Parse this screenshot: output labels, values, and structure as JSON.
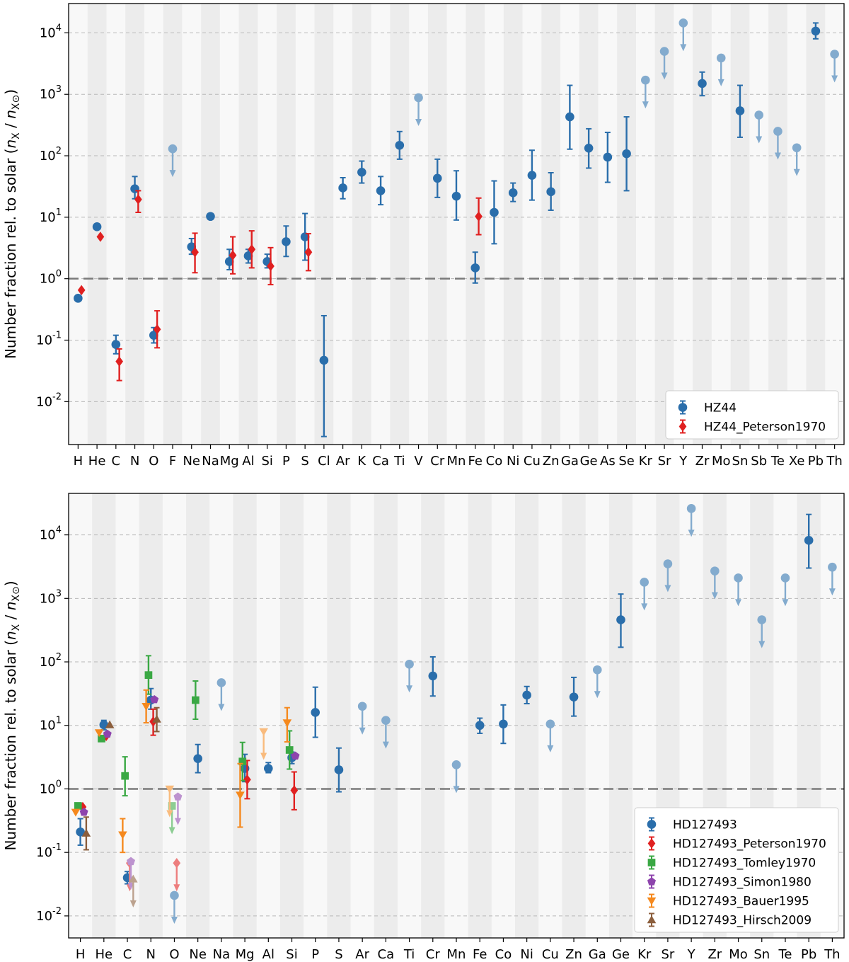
{
  "chart_data": [
    {
      "type": "scatter",
      "title": "",
      "ylabel": "Number fraction rel. to solar (nX / nX⊙)",
      "ylabel_main": "Number fraction rel. to solar (",
      "ylabel_n": "n",
      "ylabel_x": "X",
      "ylabel_slash": " / ",
      "ylabel_n2": "n",
      "ylabel_x2": "X⊙",
      "ylabel_close": ")",
      "yscale": "log",
      "ylim": [
        0.002,
        30000
      ],
      "ytick_exps": [
        -2,
        -1,
        0,
        1,
        2,
        3,
        4
      ],
      "ytick_labels": [
        "10-2",
        "10-1",
        "100",
        "101",
        "102",
        "103",
        "104"
      ],
      "grid": "horizontal dashed",
      "reference_line": 1,
      "legend_position": "lower-right",
      "categories": [
        "H",
        "He",
        "C",
        "N",
        "O",
        "F",
        "Ne",
        "Na",
        "Mg",
        "Al",
        "Si",
        "P",
        "S",
        "Cl",
        "Ar",
        "K",
        "Ca",
        "Ti",
        "V",
        "Cr",
        "Mn",
        "Fe",
        "Co",
        "Ni",
        "Cu",
        "Zn",
        "Ga",
        "Ge",
        "As",
        "Se",
        "Kr",
        "Sr",
        "Y",
        "Zr",
        "Mo",
        "Sn",
        "Sb",
        "Te",
        "Xe",
        "Pb",
        "Th"
      ],
      "series": [
        {
          "name": "HZ44",
          "marker": "circle",
          "color": "#2a6eab",
          "points": [
            {
              "el": "H",
              "v": 0.48
            },
            {
              "el": "He",
              "v": 7.0
            },
            {
              "el": "C",
              "v": 0.085,
              "lo": 0.06,
              "hi": 0.12
            },
            {
              "el": "N",
              "v": 29,
              "lo": 20,
              "hi": 46
            },
            {
              "el": "O",
              "v": 0.12,
              "lo": 0.09,
              "hi": 0.16
            },
            {
              "el": "Ne",
              "v": 3.3,
              "lo": 2.5,
              "hi": 4.5
            },
            {
              "el": "Na",
              "v": 10.3,
              "lo": 9.3,
              "hi": 11.5
            },
            {
              "el": "Mg",
              "v": 1.9,
              "lo": 1.4,
              "hi": 3.0
            },
            {
              "el": "Al",
              "v": 2.35,
              "lo": 1.8,
              "hi": 3.0
            },
            {
              "el": "Si",
              "v": 1.9,
              "lo": 1.5,
              "hi": 2.5
            },
            {
              "el": "P",
              "v": 4.0,
              "lo": 2.3,
              "hi": 7.2
            },
            {
              "el": "S",
              "v": 4.8,
              "lo": 2.0,
              "hi": 11.5
            },
            {
              "el": "Cl",
              "v": 0.047,
              "lo": 0.0027,
              "hi": 0.25
            },
            {
              "el": "Ar",
              "v": 30,
              "lo": 20,
              "hi": 44
            },
            {
              "el": "K",
              "v": 54,
              "lo": 36,
              "hi": 82
            },
            {
              "el": "Ca",
              "v": 27,
              "lo": 16,
              "hi": 46
            },
            {
              "el": "Ti",
              "v": 148,
              "lo": 88,
              "hi": 248
            },
            {
              "el": "V",
              "v": 880,
              "upper": true
            },
            {
              "el": "F",
              "v": 130,
              "upper": true
            },
            {
              "el": "Cr",
              "v": 43,
              "lo": 21,
              "hi": 88
            },
            {
              "el": "Mn",
              "v": 22,
              "lo": 9,
              "hi": 57
            },
            {
              "el": "Fe",
              "v": 1.5,
              "lo": 0.85,
              "hi": 2.7
            },
            {
              "el": "Co",
              "v": 12,
              "lo": 3.7,
              "hi": 39
            },
            {
              "el": "Ni",
              "v": 25,
              "lo": 18,
              "hi": 36
            },
            {
              "el": "Cu",
              "v": 48,
              "lo": 19,
              "hi": 123
            },
            {
              "el": "Zn",
              "v": 26,
              "lo": 13,
              "hi": 53
            },
            {
              "el": "Ga",
              "v": 430,
              "lo": 128,
              "hi": 1400
            },
            {
              "el": "Ge",
              "v": 133,
              "lo": 63,
              "hi": 275
            },
            {
              "el": "As",
              "v": 95,
              "lo": 37,
              "hi": 240
            },
            {
              "el": "Se",
              "v": 108,
              "lo": 27,
              "hi": 430
            },
            {
              "el": "Kr",
              "v": 1700,
              "upper": true
            },
            {
              "el": "Sr",
              "v": 5000,
              "upper": true
            },
            {
              "el": "Y",
              "v": 14500,
              "upper": true
            },
            {
              "el": "Zr",
              "v": 1500,
              "lo": 950,
              "hi": 2300
            },
            {
              "el": "Mo",
              "v": 3900,
              "upper": true
            },
            {
              "el": "Sn",
              "v": 540,
              "lo": 200,
              "hi": 1400
            },
            {
              "el": "Sb",
              "v": 460,
              "upper": true
            },
            {
              "el": "Te",
              "v": 250,
              "upper": true
            },
            {
              "el": "Xe",
              "v": 135,
              "upper": true
            },
            {
              "el": "Pb",
              "v": 10700,
              "lo": 8000,
              "hi": 14500
            },
            {
              "el": "Th",
              "v": 4500,
              "upper": true
            }
          ]
        },
        {
          "name": "HZ44_Peterson1970",
          "marker": "diamond",
          "color": "#e02020",
          "points": [
            {
              "el": "H",
              "v": 0.65
            },
            {
              "el": "He",
              "v": 4.8
            },
            {
              "el": "C",
              "v": 0.045,
              "lo": 0.022,
              "hi": 0.072
            },
            {
              "el": "N",
              "v": 19.5,
              "lo": 12,
              "hi": 27
            },
            {
              "el": "O",
              "v": 0.15,
              "lo": 0.075,
              "hi": 0.3
            },
            {
              "el": "Ne",
              "v": 2.7,
              "lo": 1.25,
              "hi": 5.5
            },
            {
              "el": "Mg",
              "v": 2.4,
              "lo": 1.2,
              "hi": 4.8
            },
            {
              "el": "Al",
              "v": 3.0,
              "lo": 1.5,
              "hi": 6.0
            },
            {
              "el": "Si",
              "v": 1.6,
              "lo": 0.8,
              "hi": 3.2
            },
            {
              "el": "S",
              "v": 2.7,
              "lo": 1.35,
              "hi": 5.4
            },
            {
              "el": "Fe",
              "v": 10.3,
              "lo": 5.2,
              "hi": 20.5
            }
          ]
        }
      ]
    },
    {
      "type": "scatter",
      "title": "",
      "ylabel": "Number fraction rel. to solar (nX / nX⊙)",
      "ylabel_main": "Number fraction rel. to solar (",
      "ylabel_n": "n",
      "ylabel_x": "X",
      "ylabel_slash": " / ",
      "ylabel_n2": "n",
      "ylabel_x2": "X⊙",
      "ylabel_close": ")",
      "yscale": "log",
      "ylim": [
        0.0045,
        45000
      ],
      "ytick_exps": [
        -2,
        -1,
        0,
        1,
        2,
        3,
        4
      ],
      "ytick_labels": [
        "10-2",
        "10-1",
        "100",
        "101",
        "102",
        "103",
        "104"
      ],
      "grid": "horizontal dashed",
      "reference_line": 1,
      "legend_position": "lower-right",
      "categories": [
        "H",
        "He",
        "C",
        "N",
        "O",
        "Ne",
        "Na",
        "Mg",
        "Al",
        "Si",
        "P",
        "S",
        "Ar",
        "Ca",
        "Ti",
        "Cr",
        "Mn",
        "Fe",
        "Co",
        "Ni",
        "Cu",
        "Zn",
        "Ga",
        "Ge",
        "Kr",
        "Sr",
        "Y",
        "Zr",
        "Mo",
        "Sn",
        "Te",
        "Pb",
        "Th"
      ],
      "series": [
        {
          "name": "HD127493",
          "marker": "circle",
          "color": "#2a6eab",
          "offset": 0,
          "points": [
            {
              "el": "H",
              "v": 0.21,
              "lo": 0.13,
              "hi": 0.34
            },
            {
              "el": "He",
              "v": 10.2,
              "lo": 8.5,
              "hi": 12
            },
            {
              "el": "C",
              "v": 0.04,
              "lo": 0.032,
              "hi": 0.05
            },
            {
              "el": "N",
              "v": 25,
              "lo": 18,
              "hi": 38
            },
            {
              "el": "O",
              "v": 0.021,
              "upper": true
            },
            {
              "el": "Ne",
              "v": 3.0,
              "lo": 1.8,
              "hi": 5.0
            },
            {
              "el": "Na",
              "v": 47,
              "upper": true
            },
            {
              "el": "Mg",
              "v": 2.1,
              "lo": 1.3,
              "hi": 3.5
            },
            {
              "el": "Al",
              "v": 2.1,
              "lo": 1.8,
              "hi": 2.6
            },
            {
              "el": "Si",
              "v": 3.1,
              "lo": 2.5,
              "hi": 3.8
            },
            {
              "el": "P",
              "v": 16,
              "lo": 6.5,
              "hi": 40
            },
            {
              "el": "S",
              "v": 2.0,
              "lo": 0.9,
              "hi": 4.4
            },
            {
              "el": "Ar",
              "v": 20,
              "upper": true
            },
            {
              "el": "Ca",
              "v": 12,
              "upper": true
            },
            {
              "el": "Ti",
              "v": 92,
              "upper": true
            },
            {
              "el": "Cr",
              "v": 60,
              "lo": 29,
              "hi": 120
            },
            {
              "el": "Mn",
              "v": 2.4,
              "upper": true
            },
            {
              "el": "Fe",
              "v": 10,
              "lo": 7.5,
              "hi": 13
            },
            {
              "el": "Co",
              "v": 10.5,
              "lo": 5.2,
              "hi": 21
            },
            {
              "el": "Ni",
              "v": 30,
              "lo": 22,
              "hi": 41
            },
            {
              "el": "Cu",
              "v": 10.5,
              "upper": true
            },
            {
              "el": "Zn",
              "v": 28,
              "lo": 14,
              "hi": 57
            },
            {
              "el": "Ga",
              "v": 75,
              "upper": true
            },
            {
              "el": "Ge",
              "v": 460,
              "lo": 170,
              "hi": 1170
            },
            {
              "el": "Kr",
              "v": 1800,
              "upper": true
            },
            {
              "el": "Sr",
              "v": 3500,
              "upper": true
            },
            {
              "el": "Y",
              "v": 26000,
              "upper": true
            },
            {
              "el": "Zr",
              "v": 2700,
              "upper": true
            },
            {
              "el": "Mo",
              "v": 2100,
              "upper": true
            },
            {
              "el": "Sn",
              "v": 460,
              "upper": true
            },
            {
              "el": "Te",
              "v": 2100,
              "upper": true
            },
            {
              "el": "Pb",
              "v": 8200,
              "lo": 3000,
              "hi": 21000
            },
            {
              "el": "Th",
              "v": 3100,
              "upper": true
            }
          ]
        },
        {
          "name": "HD127493_Peterson1970",
          "marker": "diamond",
          "color": "#e02020",
          "offset": 0.1,
          "points": [
            {
              "el": "H",
              "v": 0.52
            },
            {
              "el": "He",
              "v": 6.8
            },
            {
              "el": "C",
              "v": 0.068,
              "upper": true
            },
            {
              "el": "N",
              "v": 11.5,
              "lo": 7.0,
              "hi": 18
            },
            {
              "el": "O",
              "v": 0.068,
              "upper": true
            },
            {
              "el": "Mg",
              "v": 1.4,
              "lo": 0.7,
              "hi": 2.8
            },
            {
              "el": "Si",
              "v": 0.95,
              "lo": 0.47,
              "hi": 1.85
            }
          ]
        },
        {
          "name": "HD127493_Tomley1970",
          "marker": "square",
          "color": "#3aa844",
          "offset": -0.1,
          "points": [
            {
              "el": "H",
              "v": 0.54
            },
            {
              "el": "He",
              "v": 6.2
            },
            {
              "el": "C",
              "v": 1.6,
              "lo": 0.78,
              "hi": 3.2
            },
            {
              "el": "N",
              "v": 62,
              "lo": 31,
              "hi": 125
            },
            {
              "el": "O",
              "v": 0.54,
              "upper": true
            },
            {
              "el": "Ne",
              "v": 25,
              "lo": 12.5,
              "hi": 50
            },
            {
              "el": "Mg",
              "v": 2.7,
              "lo": 1.35,
              "hi": 5.4
            },
            {
              "el": "Si",
              "v": 4.1,
              "lo": 2.05,
              "hi": 8.2
            }
          ]
        },
        {
          "name": "HD127493_Simon1980",
          "marker": "pentagon",
          "color": "#8e44ad",
          "offset": 0.15,
          "points": [
            {
              "el": "H",
              "v": 0.43
            },
            {
              "el": "He",
              "v": 7.3
            },
            {
              "el": "C",
              "v": 0.072,
              "upper": true
            },
            {
              "el": "N",
              "v": 25.5
            },
            {
              "el": "O",
              "v": 0.75,
              "upper": true
            },
            {
              "el": "Si",
              "v": 3.3
            }
          ]
        },
        {
          "name": "HD127493_Bauer1995",
          "marker": "triangle-down",
          "color": "#f5891e",
          "offset": -0.2,
          "points": [
            {
              "el": "H",
              "v": 0.43
            },
            {
              "el": "He",
              "v": 7.7
            },
            {
              "el": "C",
              "v": 0.19,
              "lo": 0.1,
              "hi": 0.34
            },
            {
              "el": "N",
              "v": 20,
              "lo": 11,
              "hi": 36
            },
            {
              "el": "O",
              "v": 1.0,
              "upper": true
            },
            {
              "el": "Mg",
              "v": 0.8,
              "lo": 0.25,
              "hi": 2.5
            },
            {
              "el": "Al",
              "v": 8.0,
              "upper": true
            },
            {
              "el": "Si",
              "v": 11,
              "lo": 5.5,
              "hi": 19
            }
          ]
        },
        {
          "name": "HD127493_Hirsch2009",
          "marker": "triangle-up",
          "color": "#8b5e3c",
          "offset": 0.25,
          "points": [
            {
              "el": "H",
              "v": 0.2,
              "lo": 0.11,
              "hi": 0.36
            },
            {
              "el": "He",
              "v": 10.2
            },
            {
              "el": "C",
              "v": 0.038,
              "upper": true
            },
            {
              "el": "N",
              "v": 12.5,
              "lo": 8.0,
              "hi": 19
            }
          ]
        }
      ]
    }
  ]
}
